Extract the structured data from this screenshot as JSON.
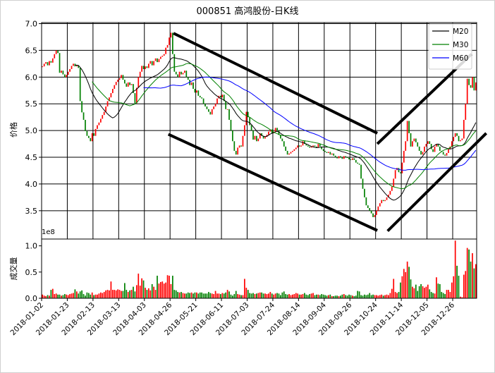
{
  "chart_data": {
    "type": "candlestick",
    "title": "000851 高鸿股份-日K线",
    "price_panel": {
      "ylabel": "价格",
      "ylim": [
        2.97,
        7.02
      ],
      "yticks": [
        3.5,
        4.0,
        4.5,
        5.0,
        5.5,
        6.0,
        6.5,
        7.0
      ],
      "ytick_labels": [
        "3.5",
        "4.0",
        "4.5",
        "5.0",
        "5.5",
        "6.0",
        "6.5",
        "7.0"
      ],
      "grid": true,
      "legend": {
        "placement": "top-right",
        "entries": [
          {
            "name": "M20",
            "window": 20,
            "color": "#000000"
          },
          {
            "name": "M30",
            "window": 30,
            "color": "#008000"
          },
          {
            "name": "M60",
            "window": 60,
            "color": "#0000ff"
          }
        ]
      },
      "close": [
        6.2,
        6.25,
        6.28,
        6.22,
        6.3,
        6.27,
        6.35,
        6.43,
        6.5,
        6.45,
        6.08,
        6.12,
        6.05,
        6.0,
        6.04,
        6.1,
        6.15,
        6.21,
        6.25,
        6.2,
        6.22,
        6.17,
        5.55,
        5.34,
        5.2,
        4.99,
        4.9,
        4.86,
        4.8,
        4.95,
        4.9,
        5.03,
        5.1,
        5.15,
        5.22,
        5.29,
        5.35,
        5.45,
        5.55,
        5.62,
        5.7,
        5.78,
        5.85,
        5.91,
        5.95,
        5.98,
        6.04,
        5.95,
        5.88,
        5.82,
        5.9,
        5.85,
        5.87,
        5.7,
        5.51,
        5.8,
        6.0,
        6.1,
        6.21,
        6.15,
        6.2,
        6.17,
        6.25,
        6.3,
        6.22,
        6.3,
        6.35,
        6.28,
        6.34,
        6.38,
        6.4,
        6.43,
        6.55,
        6.6,
        6.74,
        6.83,
        6.43,
        6.1,
        6.05,
        6.0,
        6.1,
        6.05,
        6.08,
        6.12,
        6.0,
        5.95,
        5.85,
        5.9,
        5.78,
        5.71,
        5.75,
        5.65,
        5.62,
        5.6,
        5.5,
        5.45,
        5.4,
        5.35,
        5.3,
        5.4,
        5.45,
        5.5,
        5.6,
        5.65,
        5.62,
        5.67,
        5.55,
        5.4,
        5.4,
        5.2,
        5.0,
        4.8,
        4.62,
        4.55,
        4.68,
        4.72,
        4.7,
        4.9,
        5.1,
        5.35,
        5.25,
        5.1,
        5.0,
        4.83,
        4.9,
        4.8,
        4.85,
        4.95,
        4.9,
        4.85,
        4.88,
        4.92,
        4.98,
        5.02,
        4.95,
        4.98,
        5.05,
        5.0,
        4.92,
        4.85,
        4.8,
        4.7,
        4.62,
        4.55,
        4.57,
        4.6,
        4.62,
        4.65,
        4.68,
        4.72,
        4.7,
        4.72,
        4.8,
        4.75,
        4.72,
        4.7,
        4.68,
        4.7,
        4.72,
        4.7,
        4.68,
        4.75,
        4.7,
        4.65,
        4.62,
        4.6,
        4.58,
        4.6,
        4.55,
        4.57,
        4.53,
        4.5,
        4.48,
        4.52,
        4.5,
        4.47,
        4.52,
        4.5,
        4.49,
        4.46,
        4.45,
        4.48,
        4.45,
        4.4,
        4.38,
        4.36,
        4.1,
        3.91,
        3.75,
        3.6,
        3.55,
        3.5,
        3.45,
        3.38,
        3.42,
        3.5,
        3.58,
        3.64,
        3.7,
        3.68,
        3.7,
        3.75,
        3.8,
        3.87,
        3.95,
        4.1,
        4.26,
        4.3,
        4.22,
        4.2,
        4.4,
        4.62,
        4.8,
        5.18,
        4.95,
        4.7,
        4.8,
        4.85,
        4.78,
        4.7,
        4.62,
        4.55,
        4.6,
        4.7,
        4.75,
        4.8,
        4.75,
        4.65,
        4.6,
        4.7,
        4.75,
        4.7,
        4.62,
        4.6,
        4.55,
        4.53,
        4.58,
        4.65,
        4.7,
        4.8,
        4.88,
        4.95,
        4.9,
        4.8,
        4.82,
        4.85,
        5.2,
        5.5,
        5.97,
        5.85,
        5.8,
        6.0,
        5.75,
        5.9
      ],
      "trend_lines": [
        {
          "from": [
            77,
            6.82
          ],
          "to": [
            196,
            4.95
          ]
        },
        {
          "from": [
            74,
            4.93
          ],
          "to": [
            196,
            3.13
          ]
        },
        {
          "from": [
            196,
            4.75
          ],
          "to": [
            251,
            6.43
          ]
        },
        {
          "from": [
            202,
            3.12
          ],
          "to": [
            259.6,
            4.95
          ]
        }
      ]
    },
    "volume_panel": {
      "ylabel": "成交量",
      "scale_label": "1e8",
      "ylim": [
        0,
        1.13
      ],
      "yticks": [
        0.0,
        0.5,
        1.0
      ],
      "ytick_labels": [
        "0.0",
        "0.5",
        "1.0"
      ],
      "volume": [
        0.07,
        0.05,
        0.04,
        0.06,
        0.05,
        0.16,
        0.18,
        0.08,
        0.09,
        0.07,
        0.07,
        0.05,
        0.06,
        0.08,
        0.07,
        0.06,
        0.08,
        0.09,
        0.1,
        0.17,
        0.13,
        0.09,
        0.13,
        0.15,
        0.08,
        0.05,
        0.11,
        0.1,
        0.07,
        0.11,
        0.06,
        0.07,
        0.07,
        0.09,
        0.11,
        0.1,
        0.12,
        0.15,
        0.16,
        0.15,
        0.32,
        0.16,
        0.16,
        0.15,
        0.17,
        0.16,
        0.14,
        0.14,
        0.29,
        0.16,
        0.12,
        0.15,
        0.16,
        0.22,
        0.13,
        0.25,
        0.47,
        0.24,
        0.38,
        0.34,
        0.2,
        0.16,
        0.19,
        0.15,
        0.27,
        0.22,
        0.16,
        0.43,
        0.28,
        0.31,
        0.32,
        0.28,
        0.3,
        0.44,
        0.43,
        0.27,
        0.43,
        0.16,
        0.15,
        0.12,
        0.11,
        0.12,
        0.1,
        0.09,
        0.09,
        0.11,
        0.1,
        0.11,
        0.09,
        0.11,
        0.11,
        0.09,
        0.11,
        0.11,
        0.09,
        0.09,
        0.09,
        0.12,
        0.1,
        0.09,
        0.08,
        0.14,
        0.09,
        0.09,
        0.08,
        0.1,
        0.09,
        0.11,
        0.16,
        0.13,
        0.07,
        0.05,
        0.08,
        0.14,
        0.08,
        0.07,
        0.06,
        0.06,
        0.37,
        0.2,
        0.16,
        0.1,
        0.09,
        0.1,
        0.08,
        0.09,
        0.1,
        0.11,
        0.11,
        0.09,
        0.09,
        0.08,
        0.09,
        0.12,
        0.09,
        0.07,
        0.09,
        0.1,
        0.09,
        0.06,
        0.11,
        0.13,
        0.08,
        0.07,
        0.08,
        0.06,
        0.07,
        0.08,
        0.1,
        0.09,
        0.07,
        0.07,
        0.08,
        0.1,
        0.07,
        0.06,
        0.08,
        0.09,
        0.1,
        0.06,
        0.07,
        0.07,
        0.06,
        0.08,
        0.07,
        0.06,
        0.05,
        0.06,
        0.07,
        0.04,
        0.04,
        0.05,
        0.05,
        0.04,
        0.05,
        0.07,
        0.08,
        0.06,
        0.05,
        0.07,
        0.06,
        0.05,
        0.04,
        0.05,
        0.14,
        0.13,
        0.06,
        0.05,
        0.07,
        0.06,
        0.07,
        0.1,
        0.06,
        0.07,
        0.06,
        0.06,
        0.05,
        0.06,
        0.07,
        0.05,
        0.06,
        0.07,
        0.06,
        0.1,
        0.18,
        0.37,
        0.12,
        0.1,
        0.12,
        0.3,
        0.42,
        0.56,
        0.5,
        0.7,
        0.6,
        0.36,
        0.22,
        0.19,
        0.26,
        0.14,
        0.23,
        0.27,
        0.23,
        0.2,
        0.22,
        0.26,
        0.17,
        0.12,
        0.1,
        0.09,
        0.4,
        0.28,
        0.27,
        0.12,
        0.1,
        0.08,
        0.16,
        0.16,
        0.12,
        0.3,
        0.42,
        1.1,
        0.62,
        0.43,
        0.03,
        0.02,
        0.45,
        0.52,
        0.96,
        0.93,
        0.7,
        0.86,
        0.57,
        0.65
      ]
    },
    "xlim": [
      0,
      254
    ],
    "xticks": [
      0,
      15,
      30,
      45,
      60,
      75,
      90,
      105,
      120,
      135,
      150,
      165,
      180,
      195,
      210,
      225,
      240
    ],
    "xtick_labels": [
      "2018-01-02",
      "2018-01-23",
      "2018-02-13",
      "2018-03-13",
      "2018-04-03",
      "2018-04-26",
      "2018-05-21",
      "2018-06-11",
      "2018-07-03",
      "2018-07-24",
      "2018-08-14",
      "2018-09-04",
      "2018-09-26",
      "2018-10-24",
      "2018-11-14",
      "2018-12-05",
      "2018-12-26"
    ],
    "colors": {
      "up": "#ff0000",
      "down": "#008000",
      "trend_line": "#000000"
    }
  }
}
